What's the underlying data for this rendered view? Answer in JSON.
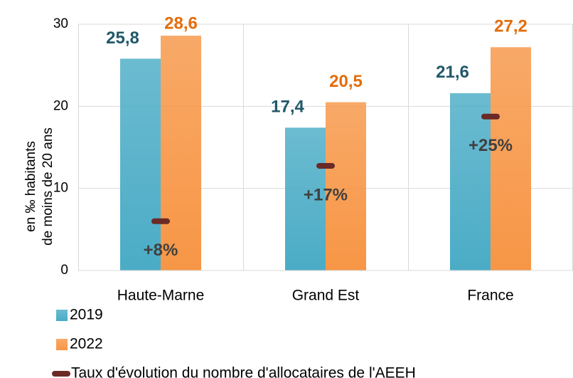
{
  "chart_data": {
    "type": "bar",
    "y_label": [
      "en ‰ habitants",
      "de moins de 20 ans"
    ],
    "categories": [
      "Haute-Marne",
      "Grand Est",
      "France"
    ],
    "series": [
      {
        "name": "2019",
        "color": "#4bacc6",
        "label_color": "#215868",
        "values": [
          25.8,
          17.4,
          21.6
        ],
        "value_labels": [
          "25,8",
          "17,4",
          "21,6"
        ]
      },
      {
        "name": "2022",
        "color": "#f79646",
        "label_color": "#e46c0a",
        "values": [
          28.6,
          20.5,
          27.2
        ],
        "value_labels": [
          "28,6",
          "20,5",
          "27,2"
        ]
      },
      {
        "name": "Taux d'évolution du nombre d'allocataires de l'AEEH",
        "type": "marker",
        "axis": "y2",
        "color": "#6b2a26",
        "label_color": "#404040",
        "values": [
          8,
          17,
          25
        ],
        "value_labels": [
          "+8%",
          "+17%",
          "+25%"
        ]
      }
    ],
    "ylim": [
      0,
      30
    ],
    "yticks": [
      0,
      10,
      20,
      30
    ],
    "y2lim": [
      0,
      40
    ],
    "grid": true
  }
}
